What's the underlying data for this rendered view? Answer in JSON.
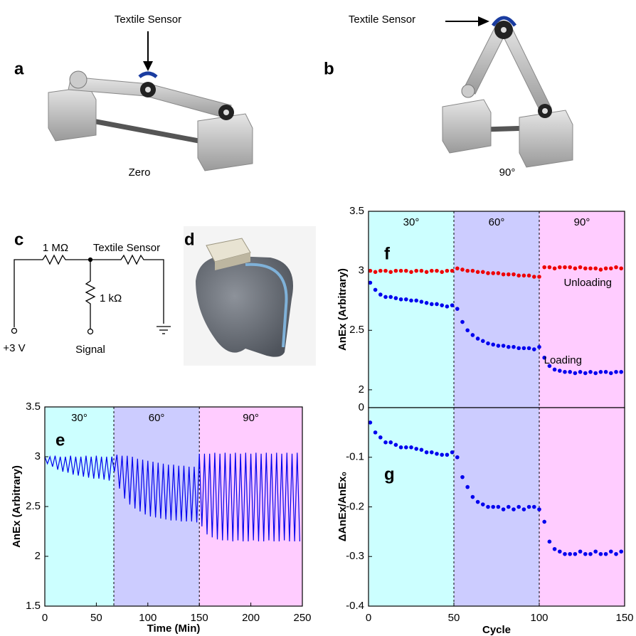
{
  "panels": {
    "a": {
      "letter": "a",
      "sensor_label": "Textile Sensor",
      "state": "Zero"
    },
    "b": {
      "letter": "b",
      "sensor_label": "Textile Sensor",
      "state": "90°"
    },
    "c": {
      "letter": "c",
      "r1": "1 MΩ",
      "sensor": "Textile Sensor",
      "r2": "1 kΩ",
      "supply": "+3 V",
      "output": "Signal"
    },
    "d": {
      "letter": "d"
    }
  },
  "chart_data": [
    {
      "type": "line",
      "panel_label": "e",
      "xlabel": "Time (Min)",
      "ylabel": "AnEx (Arbitrary)",
      "xlim": [
        0,
        250
      ],
      "xticks": [
        0,
        50,
        100,
        150,
        200,
        250
      ],
      "ylim": [
        1.5,
        3.5
      ],
      "yticks": [
        1.5,
        2,
        2.5,
        3,
        3.5
      ],
      "regions": [
        {
          "label": "30°",
          "start": 0,
          "end": 67,
          "color": "#ccffff"
        },
        {
          "label": "60°",
          "start": 67,
          "end": 150,
          "color": "#ccccff"
        },
        {
          "label": "90°",
          "start": 150,
          "end": 250,
          "color": "#ffccff"
        }
      ],
      "color": "#0000ee",
      "x": [
        0,
        2.5,
        5,
        7.5,
        10,
        12.5,
        15,
        17.5,
        20,
        22.5,
        25,
        27.5,
        30,
        32.5,
        35,
        37.5,
        40,
        42.5,
        45,
        47.5,
        50,
        52.5,
        55,
        57.5,
        60,
        62.5,
        65,
        67.5,
        70,
        72.5,
        75,
        77.5,
        80,
        82.5,
        85,
        87.5,
        90,
        92.5,
        95,
        97.5,
        100,
        102.5,
        105,
        107.5,
        110,
        112.5,
        115,
        117.5,
        120,
        122.5,
        125,
        127.5,
        130,
        132.5,
        135,
        137.5,
        140,
        142.5,
        145,
        147.5,
        150,
        152.5,
        155,
        157.5,
        160,
        162.5,
        165,
        167.5,
        170,
        172.5,
        175,
        177.5,
        180,
        182.5,
        185,
        187.5,
        190,
        192.5,
        195,
        197.5,
        200,
        202.5,
        205,
        207.5,
        210,
        212.5,
        215,
        217.5,
        220,
        222.5,
        225,
        227.5,
        230,
        232.5,
        235,
        237.5,
        240,
        242.5,
        245,
        247.5
      ],
      "values": [
        3.0,
        2.93,
        3.0,
        2.9,
        3.01,
        2.87,
        3.0,
        2.85,
        3.0,
        2.84,
        3.01,
        2.82,
        3.0,
        2.81,
        3.0,
        2.8,
        3.01,
        2.79,
        3.0,
        2.78,
        3.01,
        2.78,
        3.0,
        2.77,
        3.0,
        2.76,
        3.0,
        2.85,
        3.02,
        2.68,
        3.01,
        2.58,
        3.01,
        2.52,
        3.0,
        2.48,
        2.98,
        2.45,
        2.97,
        2.42,
        2.96,
        2.4,
        2.95,
        2.39,
        2.94,
        2.38,
        2.93,
        2.37,
        2.92,
        2.36,
        2.92,
        2.36,
        2.91,
        2.35,
        2.91,
        2.35,
        2.9,
        2.35,
        2.9,
        2.34,
        3.03,
        2.3,
        3.03,
        2.22,
        3.03,
        2.19,
        3.04,
        2.17,
        3.03,
        2.16,
        3.04,
        2.16,
        3.03,
        2.15,
        3.04,
        2.16,
        3.03,
        2.15,
        3.04,
        2.15,
        3.03,
        2.16,
        3.04,
        2.15,
        3.03,
        2.15,
        3.04,
        2.16,
        3.03,
        2.15,
        3.04,
        2.15,
        3.03,
        2.16,
        3.04,
        2.15,
        3.03,
        2.15,
        3.04,
        2.15
      ]
    },
    {
      "type": "scatter",
      "panel_label": "f",
      "ylabel": "AnEx (Arbitrary)",
      "xlim": [
        0,
        150
      ],
      "ylim": [
        1.85,
        3.5
      ],
      "yticks": [
        2,
        2.5,
        3,
        3.5
      ],
      "regions": [
        {
          "label": "30°",
          "start": 0,
          "end": 50,
          "color": "#ccffff"
        },
        {
          "label": "60°",
          "start": 50,
          "end": 100,
          "color": "#ccccff"
        },
        {
          "label": "90°",
          "start": 100,
          "end": 150,
          "color": "#ffccff"
        }
      ],
      "x": [
        1,
        4,
        7,
        10,
        13,
        16,
        19,
        22,
        25,
        28,
        31,
        34,
        37,
        40,
        43,
        46,
        49,
        52,
        55,
        58,
        61,
        64,
        67,
        70,
        73,
        76,
        79,
        82,
        85,
        88,
        91,
        94,
        97,
        100,
        103,
        106,
        109,
        112,
        115,
        118,
        121,
        124,
        127,
        130,
        133,
        136,
        139,
        142,
        145,
        148
      ],
      "series": [
        {
          "name": "Unloading",
          "color": "#ee0000",
          "values": [
            3.0,
            2.99,
            3.0,
            3.0,
            2.99,
            3.0,
            3.0,
            3.0,
            2.99,
            3.0,
            3.0,
            2.99,
            3.0,
            3.0,
            2.99,
            3.0,
            3.0,
            3.02,
            3.01,
            3.0,
            3.0,
            2.99,
            2.99,
            2.98,
            2.98,
            2.98,
            2.97,
            2.97,
            2.97,
            2.96,
            2.96,
            2.96,
            2.95,
            2.95,
            3.03,
            3.03,
            3.02,
            3.03,
            3.03,
            3.03,
            3.02,
            3.03,
            3.02,
            3.02,
            3.02,
            3.01,
            3.02,
            3.02,
            3.03,
            3.02
          ]
        },
        {
          "name": "Loading",
          "color": "#0000ee",
          "values": [
            2.9,
            2.84,
            2.8,
            2.78,
            2.78,
            2.77,
            2.76,
            2.76,
            2.75,
            2.75,
            2.74,
            2.73,
            2.72,
            2.72,
            2.71,
            2.7,
            2.71,
            2.68,
            2.57,
            2.5,
            2.46,
            2.43,
            2.41,
            2.39,
            2.38,
            2.37,
            2.37,
            2.36,
            2.36,
            2.35,
            2.35,
            2.35,
            2.34,
            2.36,
            2.27,
            2.2,
            2.17,
            2.16,
            2.15,
            2.15,
            2.14,
            2.15,
            2.14,
            2.15,
            2.14,
            2.15,
            2.15,
            2.14,
            2.15,
            2.15
          ]
        }
      ]
    },
    {
      "type": "scatter",
      "panel_label": "g",
      "xlabel": "Cycle",
      "ylabel": "ΔAnEx/AnEx₀",
      "xlim": [
        0,
        150
      ],
      "xticks": [
        0,
        50,
        100,
        150
      ],
      "ylim": [
        -0.4,
        0
      ],
      "yticks": [
        0,
        -0.1,
        -0.2,
        -0.3,
        -0.4
      ],
      "regions": [
        {
          "start": 0,
          "end": 50,
          "color": "#ccffff"
        },
        {
          "start": 50,
          "end": 100,
          "color": "#ccccff"
        },
        {
          "start": 100,
          "end": 150,
          "color": "#ffccff"
        }
      ],
      "color": "#0000ee",
      "x": [
        1,
        4,
        7,
        10,
        13,
        16,
        19,
        22,
        25,
        28,
        31,
        34,
        37,
        40,
        43,
        46,
        49,
        52,
        55,
        58,
        61,
        64,
        67,
        70,
        73,
        76,
        79,
        82,
        85,
        88,
        91,
        94,
        97,
        100,
        103,
        106,
        109,
        112,
        115,
        118,
        121,
        124,
        127,
        130,
        133,
        136,
        139,
        142,
        145,
        148
      ],
      "values": [
        -0.03,
        -0.05,
        -0.06,
        -0.07,
        -0.07,
        -0.075,
        -0.08,
        -0.08,
        -0.08,
        -0.083,
        -0.085,
        -0.09,
        -0.09,
        -0.093,
        -0.095,
        -0.095,
        -0.09,
        -0.1,
        -0.14,
        -0.16,
        -0.18,
        -0.19,
        -0.195,
        -0.2,
        -0.2,
        -0.2,
        -0.205,
        -0.2,
        -0.205,
        -0.2,
        -0.205,
        -0.2,
        -0.2,
        -0.205,
        -0.23,
        -0.27,
        -0.285,
        -0.29,
        -0.295,
        -0.295,
        -0.295,
        -0.29,
        -0.295,
        -0.295,
        -0.29,
        -0.295,
        -0.295,
        -0.29,
        -0.295,
        -0.29
      ]
    }
  ]
}
